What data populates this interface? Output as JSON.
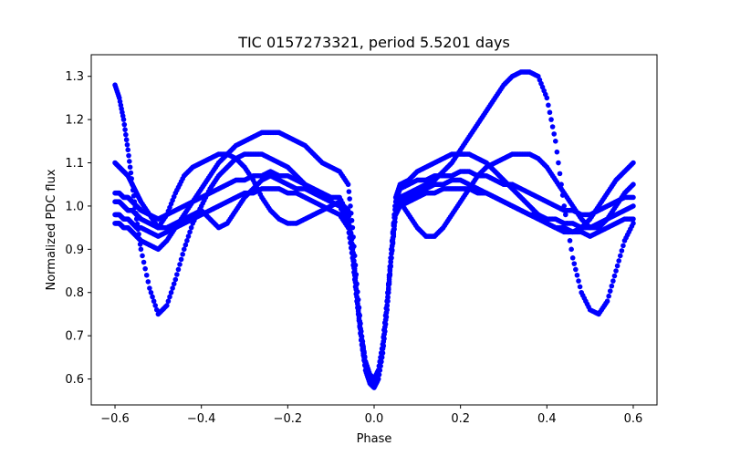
{
  "chart_data": {
    "type": "scatter",
    "title": "TIC 0157273321, period 5.5201 days",
    "xlabel": "Phase",
    "ylabel": "Normalized PDC flux",
    "xlim": [
      -0.655,
      0.655
    ],
    "ylim": [
      0.54,
      1.35
    ],
    "xticks": [
      -0.6,
      -0.4,
      -0.2,
      0.0,
      0.2,
      0.4,
      0.6
    ],
    "xtick_labels": [
      "−0.6",
      "−0.4",
      "−0.2",
      "0.0",
      "0.2",
      "0.4",
      "0.6"
    ],
    "yticks": [
      0.6,
      0.7,
      0.8,
      0.9,
      1.0,
      1.1,
      1.2,
      1.3
    ],
    "ytick_labels": [
      "0.6",
      "0.7",
      "0.8",
      "0.9",
      "1.0",
      "1.1",
      "1.2",
      "1.3"
    ],
    "grid": false,
    "marker_color": "#0000ff",
    "series": [
      {
        "x": [
          -0.6,
          -0.59,
          -0.58,
          -0.57,
          -0.56,
          -0.55,
          -0.54,
          -0.52,
          -0.5,
          -0.48,
          -0.46,
          -0.44,
          -0.42,
          -0.4,
          -0.38,
          -0.36,
          -0.34,
          -0.32,
          -0.3,
          -0.28,
          -0.26,
          -0.24,
          -0.22,
          -0.2,
          -0.18,
          -0.16,
          -0.14,
          -0.12,
          -0.1,
          -0.08,
          -0.06,
          -0.05,
          -0.04,
          -0.03,
          -0.02,
          -0.01,
          0.0,
          0.01,
          0.02,
          0.03,
          0.04,
          0.05,
          0.06,
          0.08,
          0.1,
          0.12,
          0.14,
          0.16,
          0.18,
          0.2,
          0.22,
          0.24,
          0.26,
          0.28,
          0.3,
          0.32,
          0.34,
          0.36,
          0.38,
          0.4,
          0.42,
          0.44,
          0.46,
          0.48,
          0.5,
          0.52,
          0.54,
          0.56,
          0.58,
          0.6
        ],
        "y": [
          1.03,
          1.03,
          1.02,
          1.02,
          1.01,
          1.0,
          0.99,
          0.98,
          0.97,
          0.98,
          0.99,
          1.0,
          1.01,
          1.02,
          1.03,
          1.04,
          1.05,
          1.06,
          1.06,
          1.07,
          1.07,
          1.08,
          1.07,
          1.07,
          1.06,
          1.05,
          1.04,
          1.03,
          1.02,
          1.02,
          0.98,
          0.9,
          0.8,
          0.7,
          0.64,
          0.61,
          0.6,
          0.62,
          0.68,
          0.78,
          0.9,
          1.01,
          1.04,
          1.05,
          1.06,
          1.06,
          1.07,
          1.07,
          1.07,
          1.08,
          1.08,
          1.07,
          1.07,
          1.06,
          1.05,
          1.05,
          1.04,
          1.03,
          1.02,
          1.01,
          1.0,
          0.99,
          0.99,
          0.98,
          0.98,
          0.99,
          1.0,
          1.01,
          1.02,
          1.02
        ]
      },
      {
        "x": [
          -0.6,
          -0.59,
          -0.58,
          -0.57,
          -0.56,
          -0.55,
          -0.54,
          -0.52,
          -0.5,
          -0.48,
          -0.46,
          -0.44,
          -0.42,
          -0.4,
          -0.38,
          -0.36,
          -0.34,
          -0.32,
          -0.3,
          -0.28,
          -0.26,
          -0.24,
          -0.22,
          -0.2,
          -0.18,
          -0.16,
          -0.14,
          -0.12,
          -0.1,
          -0.08,
          -0.06,
          -0.05,
          -0.04,
          -0.03,
          -0.02,
          -0.01,
          0.0,
          0.01,
          0.02,
          0.03,
          0.04,
          0.05,
          0.06,
          0.08,
          0.1,
          0.12,
          0.14,
          0.16,
          0.18,
          0.2,
          0.22,
          0.24,
          0.26,
          0.28,
          0.3,
          0.32,
          0.34,
          0.36,
          0.38,
          0.4,
          0.42,
          0.44,
          0.46,
          0.48,
          0.5,
          0.52,
          0.54,
          0.56,
          0.58,
          0.6
        ],
        "y": [
          0.98,
          0.98,
          0.97,
          0.97,
          0.96,
          0.95,
          0.95,
          0.94,
          0.93,
          0.94,
          0.95,
          0.96,
          0.97,
          0.98,
          0.99,
          1.0,
          1.01,
          1.02,
          1.03,
          1.03,
          1.04,
          1.04,
          1.04,
          1.03,
          1.03,
          1.02,
          1.01,
          1.0,
          0.99,
          0.98,
          0.95,
          0.88,
          0.78,
          0.69,
          0.63,
          0.6,
          0.59,
          0.61,
          0.67,
          0.77,
          0.88,
          0.98,
          1.0,
          1.01,
          1.02,
          1.03,
          1.03,
          1.04,
          1.04,
          1.04,
          1.04,
          1.03,
          1.03,
          1.02,
          1.01,
          1.0,
          0.99,
          0.98,
          0.97,
          0.96,
          0.95,
          0.95,
          0.94,
          0.94,
          0.93,
          0.94,
          0.95,
          0.96,
          0.97,
          0.97
        ]
      },
      {
        "x": [
          -0.6,
          -0.59,
          -0.58,
          -0.57,
          -0.56,
          -0.55,
          -0.54,
          -0.52,
          -0.5,
          -0.48,
          -0.46,
          -0.44,
          -0.42,
          -0.4,
          -0.38,
          -0.36,
          -0.34,
          -0.32,
          -0.3,
          -0.28,
          -0.26,
          -0.24,
          -0.22,
          -0.2,
          -0.18,
          -0.16,
          -0.14,
          -0.12,
          -0.1,
          -0.08,
          -0.06,
          -0.05,
          -0.04,
          -0.03,
          -0.02,
          -0.01,
          0.0,
          0.01,
          0.02,
          0.03,
          0.04,
          0.05,
          0.06,
          0.08,
          0.1,
          0.12,
          0.14,
          0.16,
          0.18,
          0.2,
          0.22,
          0.24,
          0.26,
          0.28,
          0.3,
          0.32,
          0.34,
          0.36,
          0.38,
          0.4,
          0.42,
          0.44,
          0.46,
          0.48,
          0.5,
          0.52,
          0.54,
          0.56,
          0.58,
          0.6
        ],
        "y": [
          1.28,
          1.25,
          1.2,
          1.13,
          1.05,
          0.97,
          0.9,
          0.81,
          0.75,
          0.77,
          0.83,
          0.9,
          0.96,
          1.0,
          1.04,
          1.07,
          1.09,
          1.11,
          1.12,
          1.12,
          1.12,
          1.11,
          1.1,
          1.09,
          1.07,
          1.05,
          1.03,
          1.02,
          1.01,
          1.0,
          0.98,
          0.9,
          0.79,
          0.69,
          0.62,
          0.59,
          0.58,
          0.6,
          0.66,
          0.76,
          0.88,
          0.99,
          1.02,
          1.03,
          1.04,
          1.05,
          1.06,
          1.08,
          1.1,
          1.13,
          1.16,
          1.19,
          1.22,
          1.25,
          1.28,
          1.3,
          1.31,
          1.31,
          1.3,
          1.25,
          1.15,
          1.0,
          0.88,
          0.8,
          0.76,
          0.75,
          0.78,
          0.85,
          0.92,
          0.96
        ]
      },
      {
        "x": [
          -0.6,
          -0.59,
          -0.58,
          -0.57,
          -0.56,
          -0.55,
          -0.54,
          -0.52,
          -0.5,
          -0.48,
          -0.46,
          -0.44,
          -0.42,
          -0.4,
          -0.38,
          -0.36,
          -0.34,
          -0.32,
          -0.3,
          -0.28,
          -0.26,
          -0.24,
          -0.22,
          -0.2,
          -0.18,
          -0.16,
          -0.14,
          -0.12,
          -0.1,
          -0.08,
          -0.06,
          -0.05,
          -0.04,
          -0.03,
          -0.02,
          -0.01,
          0.0,
          0.01,
          0.02,
          0.03,
          0.04,
          0.05,
          0.06,
          0.08,
          0.1,
          0.12,
          0.14,
          0.16,
          0.18,
          0.2,
          0.22,
          0.24,
          0.26,
          0.28,
          0.3,
          0.32,
          0.34,
          0.36,
          0.38,
          0.4,
          0.42,
          0.44,
          0.46,
          0.48,
          0.5,
          0.52,
          0.54,
          0.56,
          0.58,
          0.6
        ],
        "y": [
          0.96,
          0.96,
          0.95,
          0.95,
          0.94,
          0.93,
          0.92,
          0.91,
          0.9,
          0.92,
          0.95,
          0.98,
          1.01,
          1.04,
          1.07,
          1.1,
          1.12,
          1.14,
          1.15,
          1.16,
          1.17,
          1.17,
          1.17,
          1.16,
          1.15,
          1.14,
          1.12,
          1.1,
          1.09,
          1.08,
          1.05,
          0.95,
          0.82,
          0.71,
          0.64,
          0.61,
          0.6,
          0.62,
          0.68,
          0.78,
          0.9,
          1.02,
          1.05,
          1.06,
          1.08,
          1.09,
          1.1,
          1.11,
          1.12,
          1.12,
          1.12,
          1.11,
          1.1,
          1.08,
          1.06,
          1.04,
          1.02,
          1.0,
          0.98,
          0.96,
          0.95,
          0.94,
          0.94,
          0.95,
          0.97,
          1.0,
          1.03,
          1.06,
          1.08,
          1.1
        ]
      },
      {
        "x": [
          -0.6,
          -0.59,
          -0.58,
          -0.57,
          -0.56,
          -0.55,
          -0.54,
          -0.52,
          -0.5,
          -0.48,
          -0.46,
          -0.44,
          -0.42,
          -0.4,
          -0.38,
          -0.36,
          -0.34,
          -0.32,
          -0.3,
          -0.28,
          -0.26,
          -0.24,
          -0.22,
          -0.2,
          -0.18,
          -0.16,
          -0.14,
          -0.12,
          -0.1,
          -0.08,
          -0.06,
          -0.05,
          -0.04,
          -0.03,
          -0.02,
          -0.01,
          0.0,
          0.01,
          0.02,
          0.03,
          0.04,
          0.05,
          0.06,
          0.08,
          0.1,
          0.12,
          0.14,
          0.16,
          0.18,
          0.2,
          0.22,
          0.24,
          0.26,
          0.28,
          0.3,
          0.32,
          0.34,
          0.36,
          0.38,
          0.4,
          0.42,
          0.44,
          0.46,
          0.48,
          0.5,
          0.52,
          0.54,
          0.56,
          0.58,
          0.6
        ],
        "y": [
          1.1,
          1.09,
          1.08,
          1.07,
          1.05,
          1.03,
          1.01,
          0.98,
          0.95,
          0.98,
          1.03,
          1.07,
          1.09,
          1.1,
          1.11,
          1.12,
          1.12,
          1.11,
          1.09,
          1.06,
          1.02,
          0.99,
          0.97,
          0.96,
          0.96,
          0.97,
          0.98,
          0.99,
          1.0,
          1.01,
          0.99,
          0.91,
          0.8,
          0.7,
          0.63,
          0.6,
          0.59,
          0.61,
          0.67,
          0.77,
          0.89,
          1.0,
          1.01,
          0.98,
          0.95,
          0.93,
          0.93,
          0.95,
          0.98,
          1.01,
          1.04,
          1.07,
          1.09,
          1.1,
          1.11,
          1.12,
          1.12,
          1.12,
          1.11,
          1.09,
          1.06,
          1.03,
          1.0,
          0.97,
          0.95,
          0.95,
          0.97,
          1.0,
          1.03,
          1.05
        ]
      },
      {
        "x": [
          -0.6,
          -0.59,
          -0.58,
          -0.57,
          -0.56,
          -0.55,
          -0.54,
          -0.52,
          -0.5,
          -0.48,
          -0.46,
          -0.44,
          -0.42,
          -0.4,
          -0.38,
          -0.36,
          -0.34,
          -0.32,
          -0.3,
          -0.28,
          -0.26,
          -0.24,
          -0.22,
          -0.2,
          -0.18,
          -0.16,
          -0.14,
          -0.12,
          -0.1,
          -0.08,
          -0.06,
          -0.05,
          -0.04,
          -0.03,
          -0.02,
          -0.01,
          0.0,
          0.01,
          0.02,
          0.03,
          0.04,
          0.05,
          0.06,
          0.08,
          0.1,
          0.12,
          0.14,
          0.16,
          0.18,
          0.2,
          0.22,
          0.24,
          0.26,
          0.28,
          0.3,
          0.32,
          0.34,
          0.36,
          0.38,
          0.4,
          0.42,
          0.44,
          0.46,
          0.48,
          0.5,
          0.52,
          0.54,
          0.56,
          0.58,
          0.6
        ],
        "y": [
          1.01,
          1.01,
          1.0,
          0.99,
          0.99,
          0.98,
          0.97,
          0.96,
          0.95,
          0.95,
          0.96,
          0.97,
          0.98,
          0.99,
          0.97,
          0.95,
          0.96,
          0.99,
          1.02,
          1.04,
          1.06,
          1.07,
          1.06,
          1.05,
          1.04,
          1.04,
          1.03,
          1.02,
          1.01,
          1.0,
          0.96,
          0.89,
          0.79,
          0.7,
          0.64,
          0.61,
          0.6,
          0.62,
          0.68,
          0.78,
          0.89,
          0.99,
          1.01,
          1.02,
          1.03,
          1.04,
          1.05,
          1.05,
          1.06,
          1.06,
          1.05,
          1.04,
          1.03,
          1.02,
          1.01,
          1.0,
          0.99,
          0.98,
          0.98,
          0.97,
          0.97,
          0.96,
          0.96,
          0.95,
          0.95,
          0.96,
          0.97,
          0.98,
          0.99,
          1.0
        ]
      }
    ]
  }
}
